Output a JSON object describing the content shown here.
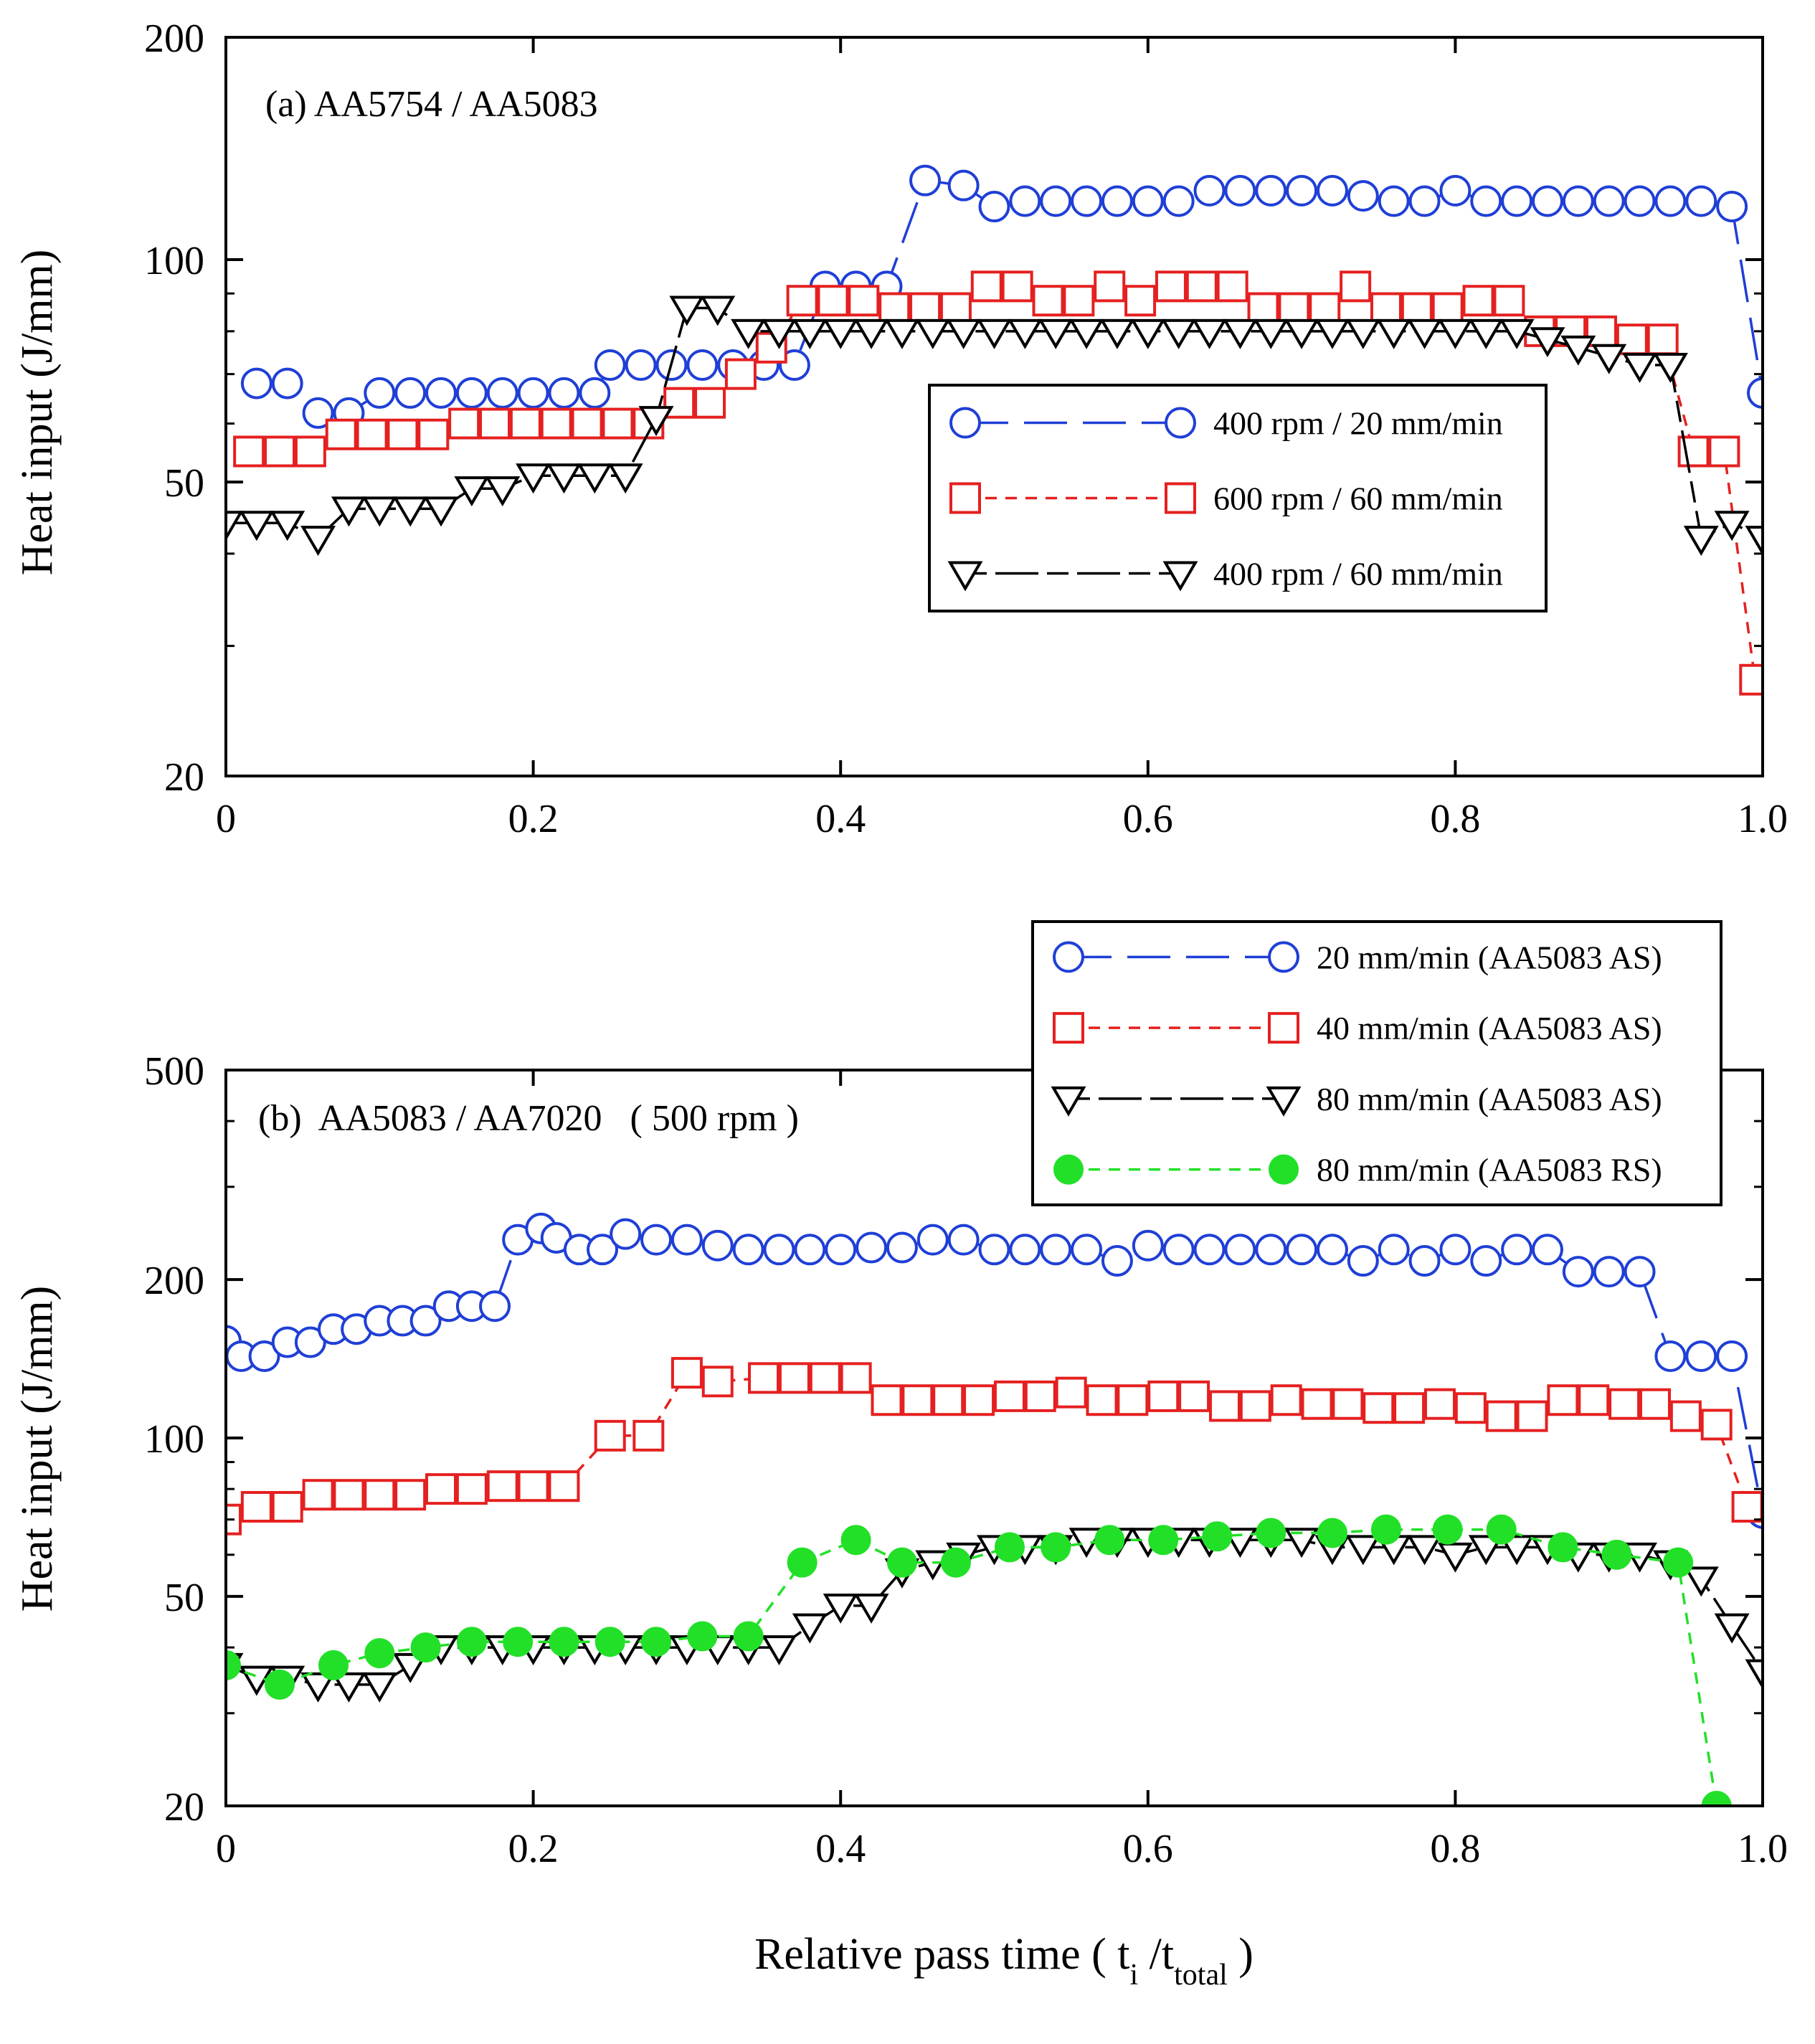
{
  "figure": {
    "xlabel_main": "Relative pass time ( t",
    "xlabel_sub_i": "i",
    "xlabel_mid": " /t",
    "xlabel_sub_total": "total",
    "xlabel_end": " )"
  },
  "chart_data": [
    {
      "type": "line",
      "title": "(a)  AA5754 / AA5083",
      "xlabel": "Relative pass time ( ti /ttotal )",
      "ylabel": "Heat input (J/mm)",
      "xlim": [
        0,
        1.0
      ],
      "ylim": [
        20,
        200
      ],
      "yscale": "log",
      "xticks": [
        0,
        0.2,
        0.4,
        0.6,
        0.8,
        1.0
      ],
      "xtick_labels": [
        "0",
        "0.2",
        "0.4",
        "0.6",
        "0.8",
        "1.0"
      ],
      "yticks": [
        20,
        50,
        100,
        200
      ],
      "ytick_labels": [
        "20",
        "50",
        "100",
        "200"
      ],
      "grid": false,
      "legend_position": "center-right",
      "series": [
        {
          "name": "400 rpm / 20 mm/min",
          "color": "#1f3fd6",
          "marker": "open-circle",
          "dash": "long-dash",
          "x": [
            0.02,
            0.04,
            0.06,
            0.08,
            0.1,
            0.12,
            0.14,
            0.16,
            0.18,
            0.2,
            0.22,
            0.24,
            0.25,
            0.27,
            0.29,
            0.31,
            0.33,
            0.35,
            0.37,
            0.39,
            0.41,
            0.43,
            0.455,
            0.48,
            0.5,
            0.52,
            0.54,
            0.56,
            0.58,
            0.6,
            0.62,
            0.64,
            0.66,
            0.68,
            0.7,
            0.72,
            0.74,
            0.76,
            0.78,
            0.8,
            0.82,
            0.84,
            0.86,
            0.88,
            0.9,
            0.92,
            0.94,
            0.96,
            0.98,
            1.0
          ],
          "y": [
            68,
            68,
            62,
            62,
            66,
            66,
            66,
            66,
            66,
            66,
            66,
            66,
            72,
            72,
            72,
            72,
            72,
            72,
            72,
            92,
            92,
            92,
            128,
            126,
            118,
            120,
            120,
            120,
            120,
            120,
            120,
            124,
            124,
            124,
            124,
            124,
            122,
            120,
            120,
            124,
            120,
            120,
            120,
            120,
            120,
            120,
            120,
            120,
            118,
            66
          ]
        },
        {
          "name": "600 rpm / 60 mm/min",
          "color": "#e52020",
          "marker": "open-square",
          "dash": "short-dash",
          "x": [
            0.015,
            0.035,
            0.055,
            0.075,
            0.095,
            0.115,
            0.135,
            0.155,
            0.175,
            0.195,
            0.215,
            0.235,
            0.255,
            0.275,
            0.295,
            0.315,
            0.335,
            0.355,
            0.375,
            0.395,
            0.415,
            0.435,
            0.455,
            0.475,
            0.495,
            0.515,
            0.535,
            0.555,
            0.575,
            0.595,
            0.615,
            0.635,
            0.655,
            0.675,
            0.695,
            0.715,
            0.735,
            0.755,
            0.775,
            0.795,
            0.815,
            0.835,
            0.855,
            0.875,
            0.895,
            0.915,
            0.935,
            0.955,
            0.975,
            0.995
          ],
          "y": [
            55,
            55,
            55,
            58,
            58,
            58,
            58,
            60,
            60,
            60,
            60,
            60,
            60,
            60,
            64,
            64,
            70,
            76,
            88,
            88,
            88,
            86,
            86,
            86,
            92,
            92,
            88,
            88,
            92,
            88,
            92,
            92,
            92,
            86,
            86,
            86,
            92,
            86,
            86,
            86,
            88,
            88,
            80,
            80,
            80,
            78,
            78,
            55,
            55,
            27
          ]
        },
        {
          "name": "400 rpm / 60 mm/min",
          "color": "#000000",
          "marker": "open-triangle-down",
          "dash": "dash-dot",
          "x": [
            0.0,
            0.02,
            0.04,
            0.06,
            0.08,
            0.1,
            0.12,
            0.14,
            0.16,
            0.18,
            0.2,
            0.22,
            0.24,
            0.26,
            0.28,
            0.3,
            0.32,
            0.34,
            0.36,
            0.38,
            0.4,
            0.42,
            0.44,
            0.46,
            0.48,
            0.5,
            0.52,
            0.54,
            0.56,
            0.58,
            0.6,
            0.62,
            0.64,
            0.66,
            0.68,
            0.7,
            0.72,
            0.74,
            0.76,
            0.78,
            0.8,
            0.82,
            0.84,
            0.86,
            0.88,
            0.9,
            0.92,
            0.94,
            0.96,
            0.98,
            1.0
          ],
          "y": [
            44,
            44,
            44,
            42,
            46,
            46,
            46,
            46,
            49,
            49,
            51,
            51,
            51,
            51,
            61,
            86,
            86,
            80,
            80,
            80,
            80,
            80,
            80,
            80,
            80,
            80,
            80,
            80,
            80,
            80,
            80,
            80,
            80,
            80,
            80,
            80,
            80,
            80,
            80,
            80,
            80,
            80,
            80,
            78,
            76,
            74,
            72,
            72,
            42,
            44,
            42
          ]
        }
      ]
    },
    {
      "type": "line",
      "title": "(b)  AA5083 / AA7020   ( 500 rpm )",
      "xlabel": "Relative pass time ( ti /ttotal )",
      "ylabel": "Heat input (J/mm)",
      "xlim": [
        0,
        1.0
      ],
      "ylim": [
        20,
        500
      ],
      "yscale": "log",
      "xticks": [
        0,
        0.2,
        0.4,
        0.6,
        0.8,
        1.0
      ],
      "xtick_labels": [
        "0",
        "0.2",
        "0.4",
        "0.6",
        "0.8",
        "1.0"
      ],
      "yticks": [
        20,
        50,
        100,
        200,
        500
      ],
      "ytick_labels": [
        "20",
        "50",
        "100",
        "200",
        "500"
      ],
      "grid": false,
      "legend_position": "top-right",
      "series": [
        {
          "name": "20 mm/min (AA5083 AS)",
          "color": "#1f3fd6",
          "marker": "open-circle",
          "dash": "long-dash",
          "x": [
            0.0,
            0.01,
            0.025,
            0.04,
            0.055,
            0.07,
            0.085,
            0.1,
            0.115,
            0.13,
            0.145,
            0.16,
            0.175,
            0.19,
            0.205,
            0.215,
            0.23,
            0.245,
            0.26,
            0.28,
            0.3,
            0.32,
            0.34,
            0.36,
            0.38,
            0.4,
            0.42,
            0.44,
            0.46,
            0.48,
            0.5,
            0.52,
            0.54,
            0.56,
            0.58,
            0.6,
            0.62,
            0.64,
            0.66,
            0.68,
            0.7,
            0.72,
            0.74,
            0.76,
            0.78,
            0.8,
            0.82,
            0.84,
            0.86,
            0.88,
            0.9,
            0.92,
            0.94,
            0.96,
            0.98,
            1.0
          ],
          "y": [
            153,
            143,
            143,
            152,
            152,
            161,
            161,
            167,
            167,
            167,
            178,
            178,
            178,
            238,
            250,
            240,
            228,
            228,
            244,
            238,
            238,
            232,
            228,
            228,
            228,
            228,
            230,
            230,
            238,
            238,
            228,
            228,
            228,
            228,
            217,
            232,
            228,
            228,
            228,
            228,
            228,
            228,
            217,
            228,
            217,
            228,
            217,
            228,
            228,
            207,
            207,
            207,
            143,
            143,
            143,
            72
          ]
        },
        {
          "name": "40 mm/min (AA5083 AS)",
          "color": "#e52020",
          "marker": "open-square",
          "dash": "short-dash",
          "x": [
            0.0,
            0.02,
            0.04,
            0.06,
            0.08,
            0.1,
            0.12,
            0.14,
            0.16,
            0.18,
            0.2,
            0.22,
            0.25,
            0.275,
            0.3,
            0.32,
            0.35,
            0.37,
            0.39,
            0.41,
            0.43,
            0.45,
            0.47,
            0.49,
            0.51,
            0.53,
            0.55,
            0.57,
            0.59,
            0.61,
            0.63,
            0.65,
            0.67,
            0.69,
            0.71,
            0.73,
            0.75,
            0.77,
            0.79,
            0.81,
            0.83,
            0.85,
            0.87,
            0.89,
            0.91,
            0.93,
            0.95,
            0.97,
            0.99
          ],
          "y": [
            70,
            74,
            74,
            78,
            78,
            78,
            78,
            80,
            80,
            81,
            81,
            81,
            101,
            101,
            133,
            128,
            130,
            130,
            130,
            130,
            118,
            118,
            118,
            118,
            120,
            120,
            122,
            118,
            118,
            120,
            120,
            115,
            115,
            118,
            116,
            116,
            114,
            114,
            116,
            114,
            110,
            110,
            118,
            118,
            116,
            116,
            110,
            106,
            74
          ]
        },
        {
          "name": "80 mm/min (AA5083 AS)",
          "color": "#000000",
          "marker": "open-triangle-down",
          "dash": "dash-dot",
          "x": [
            0.0,
            0.02,
            0.04,
            0.06,
            0.08,
            0.1,
            0.12,
            0.14,
            0.16,
            0.18,
            0.2,
            0.22,
            0.24,
            0.26,
            0.28,
            0.3,
            0.32,
            0.34,
            0.36,
            0.38,
            0.4,
            0.42,
            0.44,
            0.46,
            0.48,
            0.5,
            0.52,
            0.54,
            0.56,
            0.58,
            0.6,
            0.62,
            0.64,
            0.66,
            0.68,
            0.7,
            0.72,
            0.74,
            0.76,
            0.78,
            0.8,
            0.82,
            0.84,
            0.86,
            0.88,
            0.9,
            0.92,
            0.94,
            0.96,
            0.98,
            1.0
          ],
          "y": [
            37,
            35,
            35,
            34,
            34,
            34,
            37,
            40,
            40,
            40,
            40,
            40,
            40,
            40,
            40,
            40,
            40,
            40,
            40,
            44,
            48,
            48,
            56,
            58,
            60,
            62,
            62,
            62,
            64,
            64,
            64,
            64,
            64,
            64,
            64,
            64,
            62,
            62,
            62,
            62,
            60,
            62,
            62,
            62,
            60,
            60,
            60,
            58,
            54,
            44,
            36
          ]
        },
        {
          "name": "80 mm/min (AA5083 RS)",
          "color": "#22e028",
          "marker": "filled-circle",
          "dash": "short-dash",
          "x": [
            0.0,
            0.035,
            0.07,
            0.1,
            0.13,
            0.16,
            0.19,
            0.22,
            0.25,
            0.28,
            0.31,
            0.34,
            0.375,
            0.41,
            0.44,
            0.475,
            0.51,
            0.54,
            0.575,
            0.61,
            0.645,
            0.68,
            0.72,
            0.755,
            0.795,
            0.83,
            0.87,
            0.905,
            0.945,
            0.97
          ],
          "y": [
            37,
            34,
            37,
            39,
            40,
            41,
            41,
            41,
            41,
            41,
            42,
            42,
            58,
            64,
            58,
            58,
            62,
            62,
            64,
            64,
            65,
            66,
            66,
            67,
            67,
            67,
            62,
            60,
            58,
            20
          ]
        }
      ]
    }
  ]
}
